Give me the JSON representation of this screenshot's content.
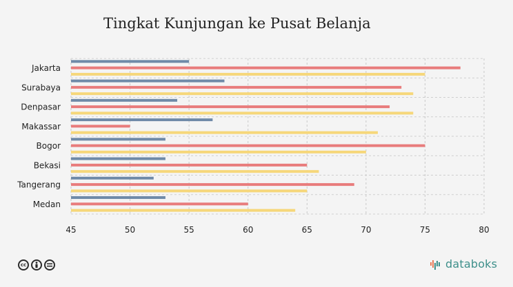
{
  "chart_data": {
    "type": "bar",
    "orientation": "horizontal",
    "title": "Tingkat Kunjungan ke Pusat Belanja",
    "categories": [
      "Jakarta",
      "Surabaya",
      "Denpasar",
      "Makassar",
      "Bogor",
      "Bekasi",
      "Tangerang",
      "Medan"
    ],
    "series": [
      {
        "values": [
          55,
          58,
          54,
          57,
          53,
          53,
          52,
          53
        ],
        "color": "#6f8aa8"
      },
      {
        "values": [
          78,
          73,
          72,
          50,
          75,
          65,
          69,
          60
        ],
        "color": "#e87c7c"
      },
      {
        "values": [
          75,
          74,
          74,
          71,
          70,
          66,
          65,
          64
        ],
        "color": "#f6d77a"
      }
    ],
    "xlim": [
      45,
      80
    ],
    "x_ticks": [
      "45",
      "50",
      "55",
      "60",
      "65",
      "70",
      "75",
      "80"
    ],
    "grid": true,
    "xlabel": "",
    "ylabel": ""
  },
  "footer": {
    "license_icons": [
      "cc-icon",
      "by-icon",
      "nd-icon"
    ],
    "brand": "databoks"
  }
}
